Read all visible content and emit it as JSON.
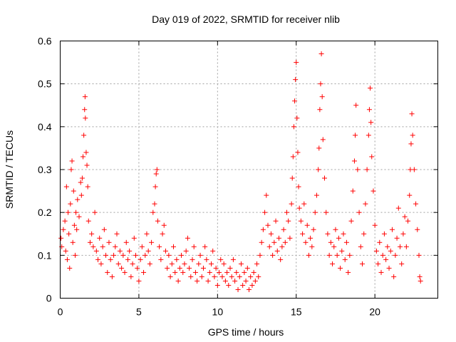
{
  "chart_data": {
    "type": "scatter",
    "title": "Day 019 of 2022, SRMTID for receiver nlib",
    "xlabel": "GPS time / hours",
    "ylabel": "SRMTID / TECUs",
    "xlim": [
      0,
      24
    ],
    "ylim": [
      0,
      0.6
    ],
    "xticks": [
      0,
      5,
      10,
      15,
      20
    ],
    "xtick_labels": [
      "0",
      "5",
      "10",
      "15",
      "20"
    ],
    "yticks": [
      0,
      0.1,
      0.2,
      0.3,
      0.4,
      0.5,
      0.6
    ],
    "ytick_labels": [
      "0",
      "0.1",
      "0.2",
      "0.3",
      "0.4",
      "0.5",
      "0.6"
    ],
    "grid": true,
    "marker": "+",
    "series": [
      {
        "name": "SRMTID",
        "color": "#ff0000",
        "points": [
          [
            0.05,
            0.14
          ],
          [
            0.1,
            0.12
          ],
          [
            0.2,
            0.16
          ],
          [
            0.3,
            0.18
          ],
          [
            0.35,
            0.11
          ],
          [
            0.4,
            0.26
          ],
          [
            0.45,
            0.09
          ],
          [
            0.5,
            0.2
          ],
          [
            0.55,
            0.15
          ],
          [
            0.6,
            0.07
          ],
          [
            0.65,
            0.22
          ],
          [
            0.7,
            0.3
          ],
          [
            0.75,
            0.32
          ],
          [
            0.8,
            0.13
          ],
          [
            0.85,
            0.25
          ],
          [
            0.9,
            0.17
          ],
          [
            0.95,
            0.1
          ],
          [
            1.0,
            0.2
          ],
          [
            1.05,
            0.16
          ],
          [
            1.1,
            0.23
          ],
          [
            1.2,
            0.19
          ],
          [
            1.3,
            0.27
          ],
          [
            1.35,
            0.24
          ],
          [
            1.4,
            0.28
          ],
          [
            1.45,
            0.33
          ],
          [
            1.5,
            0.38
          ],
          [
            1.55,
            0.44
          ],
          [
            1.58,
            0.47
          ],
          [
            1.6,
            0.42
          ],
          [
            1.65,
            0.34
          ],
          [
            1.7,
            0.31
          ],
          [
            1.75,
            0.26
          ],
          [
            1.8,
            0.18
          ],
          [
            1.9,
            0.13
          ],
          [
            2.0,
            0.15
          ],
          [
            2.1,
            0.12
          ],
          [
            2.2,
            0.2
          ],
          [
            2.3,
            0.11
          ],
          [
            2.4,
            0.09
          ],
          [
            2.5,
            0.14
          ],
          [
            2.6,
            0.08
          ],
          [
            2.7,
            0.12
          ],
          [
            2.8,
            0.16
          ],
          [
            2.9,
            0.1
          ],
          [
            3.0,
            0.06
          ],
          [
            3.1,
            0.13
          ],
          [
            3.2,
            0.09
          ],
          [
            3.3,
            0.05
          ],
          [
            3.4,
            0.1
          ],
          [
            3.5,
            0.12
          ],
          [
            3.6,
            0.15
          ],
          [
            3.7,
            0.08
          ],
          [
            3.8,
            0.11
          ],
          [
            3.9,
            0.07
          ],
          [
            4.0,
            0.1
          ],
          [
            4.1,
            0.06
          ],
          [
            4.2,
            0.13
          ],
          [
            4.3,
            0.09
          ],
          [
            4.4,
            0.11
          ],
          [
            4.5,
            0.05
          ],
          [
            4.6,
            0.08
          ],
          [
            4.7,
            0.14
          ],
          [
            4.8,
            0.1
          ],
          [
            4.9,
            0.07
          ],
          [
            5.0,
            0.04
          ],
          [
            5.1,
            0.09
          ],
          [
            5.2,
            0.12
          ],
          [
            5.3,
            0.06
          ],
          [
            5.4,
            0.1
          ],
          [
            5.5,
            0.15
          ],
          [
            5.6,
            0.11
          ],
          [
            5.7,
            0.08
          ],
          [
            5.8,
            0.13
          ],
          [
            5.9,
            0.2
          ],
          [
            6.0,
            0.22
          ],
          [
            6.05,
            0.26
          ],
          [
            6.1,
            0.29
          ],
          [
            6.15,
            0.3
          ],
          [
            6.2,
            0.18
          ],
          [
            6.3,
            0.12
          ],
          [
            6.4,
            0.09
          ],
          [
            6.5,
            0.15
          ],
          [
            6.6,
            0.17
          ],
          [
            6.7,
            0.11
          ],
          [
            6.8,
            0.07
          ],
          [
            6.9,
            0.1
          ],
          [
            7.0,
            0.05
          ],
          [
            7.1,
            0.08
          ],
          [
            7.2,
            0.12
          ],
          [
            7.3,
            0.06
          ],
          [
            7.4,
            0.09
          ],
          [
            7.5,
            0.04
          ],
          [
            7.6,
            0.07
          ],
          [
            7.7,
            0.1
          ],
          [
            7.8,
            0.06
          ],
          [
            7.9,
            0.08
          ],
          [
            8.0,
            0.11
          ],
          [
            8.1,
            0.14
          ],
          [
            8.2,
            0.07
          ],
          [
            8.3,
            0.05
          ],
          [
            8.4,
            0.09
          ],
          [
            8.5,
            0.12
          ],
          [
            8.6,
            0.06
          ],
          [
            8.7,
            0.04
          ],
          [
            8.8,
            0.08
          ],
          [
            8.9,
            0.1
          ],
          [
            9.0,
            0.05
          ],
          [
            9.1,
            0.07
          ],
          [
            9.2,
            0.12
          ],
          [
            9.3,
            0.09
          ],
          [
            9.4,
            0.04
          ],
          [
            9.5,
            0.06
          ],
          [
            9.6,
            0.08
          ],
          [
            9.7,
            0.11
          ],
          [
            9.8,
            0.05
          ],
          [
            9.9,
            0.07
          ],
          [
            10.0,
            0.03
          ],
          [
            10.1,
            0.06
          ],
          [
            10.2,
            0.09
          ],
          [
            10.3,
            0.05
          ],
          [
            10.4,
            0.08
          ],
          [
            10.5,
            0.04
          ],
          [
            10.6,
            0.06
          ],
          [
            10.7,
            0.03
          ],
          [
            10.8,
            0.07
          ],
          [
            10.9,
            0.05
          ],
          [
            11.0,
            0.09
          ],
          [
            11.1,
            0.04
          ],
          [
            11.2,
            0.06
          ],
          [
            11.3,
            0.02
          ],
          [
            11.4,
            0.05
          ],
          [
            11.5,
            0.08
          ],
          [
            11.6,
            0.03
          ],
          [
            11.7,
            0.06
          ],
          [
            11.8,
            0.04
          ],
          [
            11.9,
            0.07
          ],
          [
            12.0,
            0.02
          ],
          [
            12.1,
            0.05
          ],
          [
            12.2,
            0.03
          ],
          [
            12.3,
            0.06
          ],
          [
            12.4,
            0.04
          ],
          [
            12.5,
            0.08
          ],
          [
            12.6,
            0.05
          ],
          [
            12.7,
            0.1
          ],
          [
            12.8,
            0.13
          ],
          [
            12.9,
            0.16
          ],
          [
            13.0,
            0.2
          ],
          [
            13.1,
            0.24
          ],
          [
            13.2,
            0.17
          ],
          [
            13.3,
            0.12
          ],
          [
            13.4,
            0.15
          ],
          [
            13.5,
            0.1
          ],
          [
            13.6,
            0.13
          ],
          [
            13.7,
            0.18
          ],
          [
            13.8,
            0.11
          ],
          [
            13.9,
            0.14
          ],
          [
            14.0,
            0.09
          ],
          [
            14.1,
            0.12
          ],
          [
            14.2,
            0.16
          ],
          [
            14.3,
            0.13
          ],
          [
            14.4,
            0.2
          ],
          [
            14.5,
            0.18
          ],
          [
            14.6,
            0.14
          ],
          [
            14.7,
            0.22
          ],
          [
            14.75,
            0.28
          ],
          [
            14.8,
            0.33
          ],
          [
            14.85,
            0.4
          ],
          [
            14.9,
            0.46
          ],
          [
            14.95,
            0.51
          ],
          [
            15.0,
            0.55
          ],
          [
            15.05,
            0.42
          ],
          [
            15.1,
            0.34
          ],
          [
            15.15,
            0.26
          ],
          [
            15.2,
            0.21
          ],
          [
            15.3,
            0.18
          ],
          [
            15.4,
            0.15
          ],
          [
            15.5,
            0.22
          ],
          [
            15.6,
            0.13
          ],
          [
            15.7,
            0.17
          ],
          [
            15.8,
            0.1
          ],
          [
            15.9,
            0.14
          ],
          [
            16.0,
            0.12
          ],
          [
            16.1,
            0.16
          ],
          [
            16.2,
            0.2
          ],
          [
            16.3,
            0.24
          ],
          [
            16.4,
            0.3
          ],
          [
            16.45,
            0.35
          ],
          [
            16.5,
            0.44
          ],
          [
            16.55,
            0.5
          ],
          [
            16.6,
            0.57
          ],
          [
            16.65,
            0.47
          ],
          [
            16.7,
            0.37
          ],
          [
            16.8,
            0.28
          ],
          [
            16.9,
            0.2
          ],
          [
            17.0,
            0.15
          ],
          [
            17.1,
            0.1
          ],
          [
            17.2,
            0.13
          ],
          [
            17.3,
            0.08
          ],
          [
            17.4,
            0.12
          ],
          [
            17.5,
            0.16
          ],
          [
            17.6,
            0.1
          ],
          [
            17.7,
            0.14
          ],
          [
            17.8,
            0.07
          ],
          [
            17.9,
            0.11
          ],
          [
            18.0,
            0.15
          ],
          [
            18.1,
            0.09
          ],
          [
            18.2,
            0.13
          ],
          [
            18.3,
            0.06
          ],
          [
            18.4,
            0.1
          ],
          [
            18.5,
            0.18
          ],
          [
            18.6,
            0.25
          ],
          [
            18.7,
            0.32
          ],
          [
            18.75,
            0.38
          ],
          [
            18.8,
            0.45
          ],
          [
            18.9,
            0.3
          ],
          [
            19.0,
            0.2
          ],
          [
            19.1,
            0.12
          ],
          [
            19.2,
            0.08
          ],
          [
            19.3,
            0.15
          ],
          [
            19.4,
            0.22
          ],
          [
            19.5,
            0.3
          ],
          [
            19.6,
            0.38
          ],
          [
            19.65,
            0.44
          ],
          [
            19.7,
            0.49
          ],
          [
            19.75,
            0.41
          ],
          [
            19.8,
            0.33
          ],
          [
            19.9,
            0.25
          ],
          [
            20.0,
            0.17
          ],
          [
            20.1,
            0.11
          ],
          [
            20.2,
            0.08
          ],
          [
            20.3,
            0.13
          ],
          [
            20.4,
            0.06
          ],
          [
            20.5,
            0.1
          ],
          [
            20.6,
            0.15
          ],
          [
            20.7,
            0.09
          ],
          [
            20.8,
            0.12
          ],
          [
            20.9,
            0.07
          ],
          [
            21.0,
            0.11
          ],
          [
            21.1,
            0.16
          ],
          [
            21.2,
            0.05
          ],
          [
            21.3,
            0.1
          ],
          [
            21.4,
            0.14
          ],
          [
            21.5,
            0.21
          ],
          [
            21.6,
            0.12
          ],
          [
            21.7,
            0.08
          ],
          [
            21.8,
            0.15
          ],
          [
            21.9,
            0.19
          ],
          [
            22.0,
            0.12
          ],
          [
            22.1,
            0.18
          ],
          [
            22.2,
            0.24
          ],
          [
            22.25,
            0.3
          ],
          [
            22.3,
            0.36
          ],
          [
            22.35,
            0.43
          ],
          [
            22.4,
            0.38
          ],
          [
            22.5,
            0.3
          ],
          [
            22.6,
            0.22
          ],
          [
            22.7,
            0.16
          ],
          [
            22.8,
            0.1
          ],
          [
            22.85,
            0.05
          ],
          [
            22.9,
            0.04
          ]
        ]
      }
    ]
  }
}
